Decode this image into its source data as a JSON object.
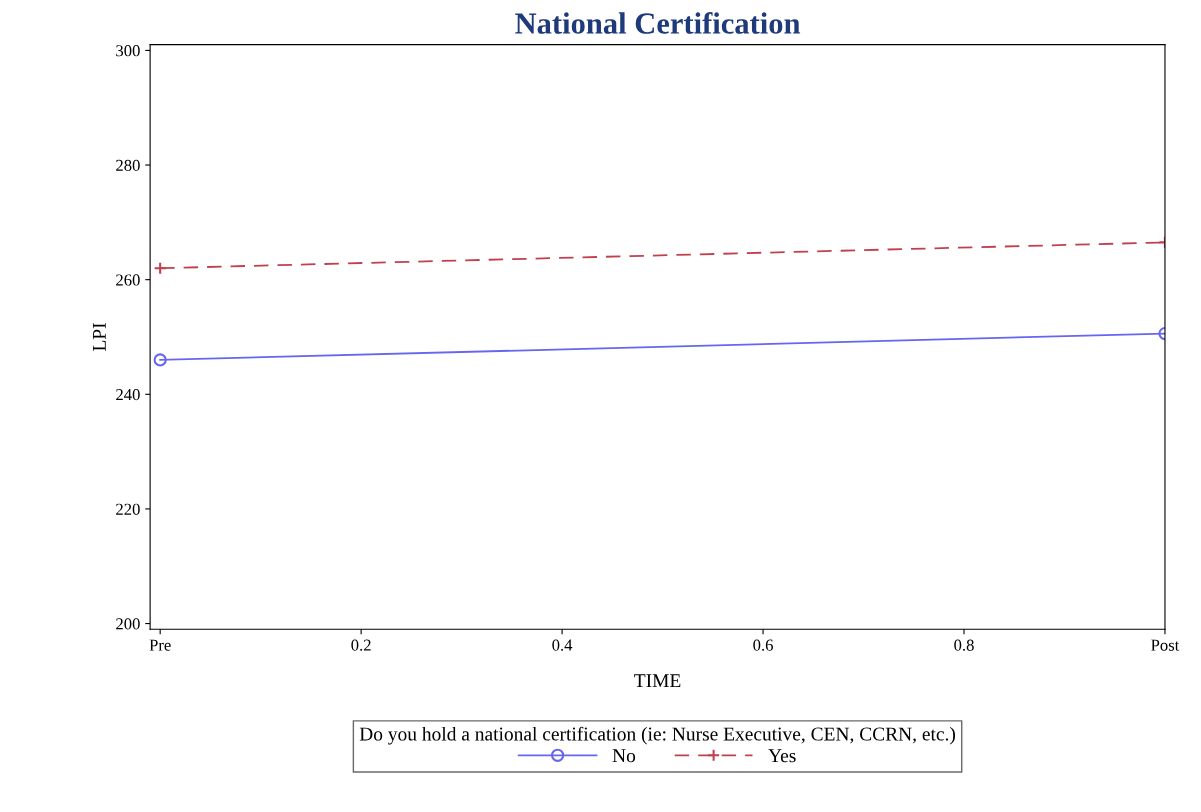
{
  "chart_data": {
    "type": "line",
    "title": "National Certification",
    "xlabel": "TIME",
    "ylabel": "LPI",
    "legend_title": "Do you hold a national certification (ie: Nurse Executive, CEN, CCRN, etc.)",
    "legend": "bottom",
    "x": [
      0,
      1
    ],
    "series": [
      {
        "name": "No",
        "color": "#6666ee",
        "values": [
          246,
          250.6
        ],
        "marker": "circle",
        "line_style": "solid"
      },
      {
        "name": "Yes",
        "color": "#c0404f",
        "values": [
          262,
          266.5
        ],
        "marker": "cross",
        "line_style": "dashed"
      }
    ],
    "xlim": [
      -0.01,
      1.0
    ],
    "xticks": [
      {
        "value": 0,
        "label": "Pre"
      },
      0.2,
      0.4,
      0.6,
      0.8,
      {
        "value": 1,
        "label": "Post"
      }
    ],
    "ylim": [
      199,
      301
    ],
    "yticks": [
      200,
      220,
      240,
      260,
      280,
      300
    ],
    "grid": false
  }
}
